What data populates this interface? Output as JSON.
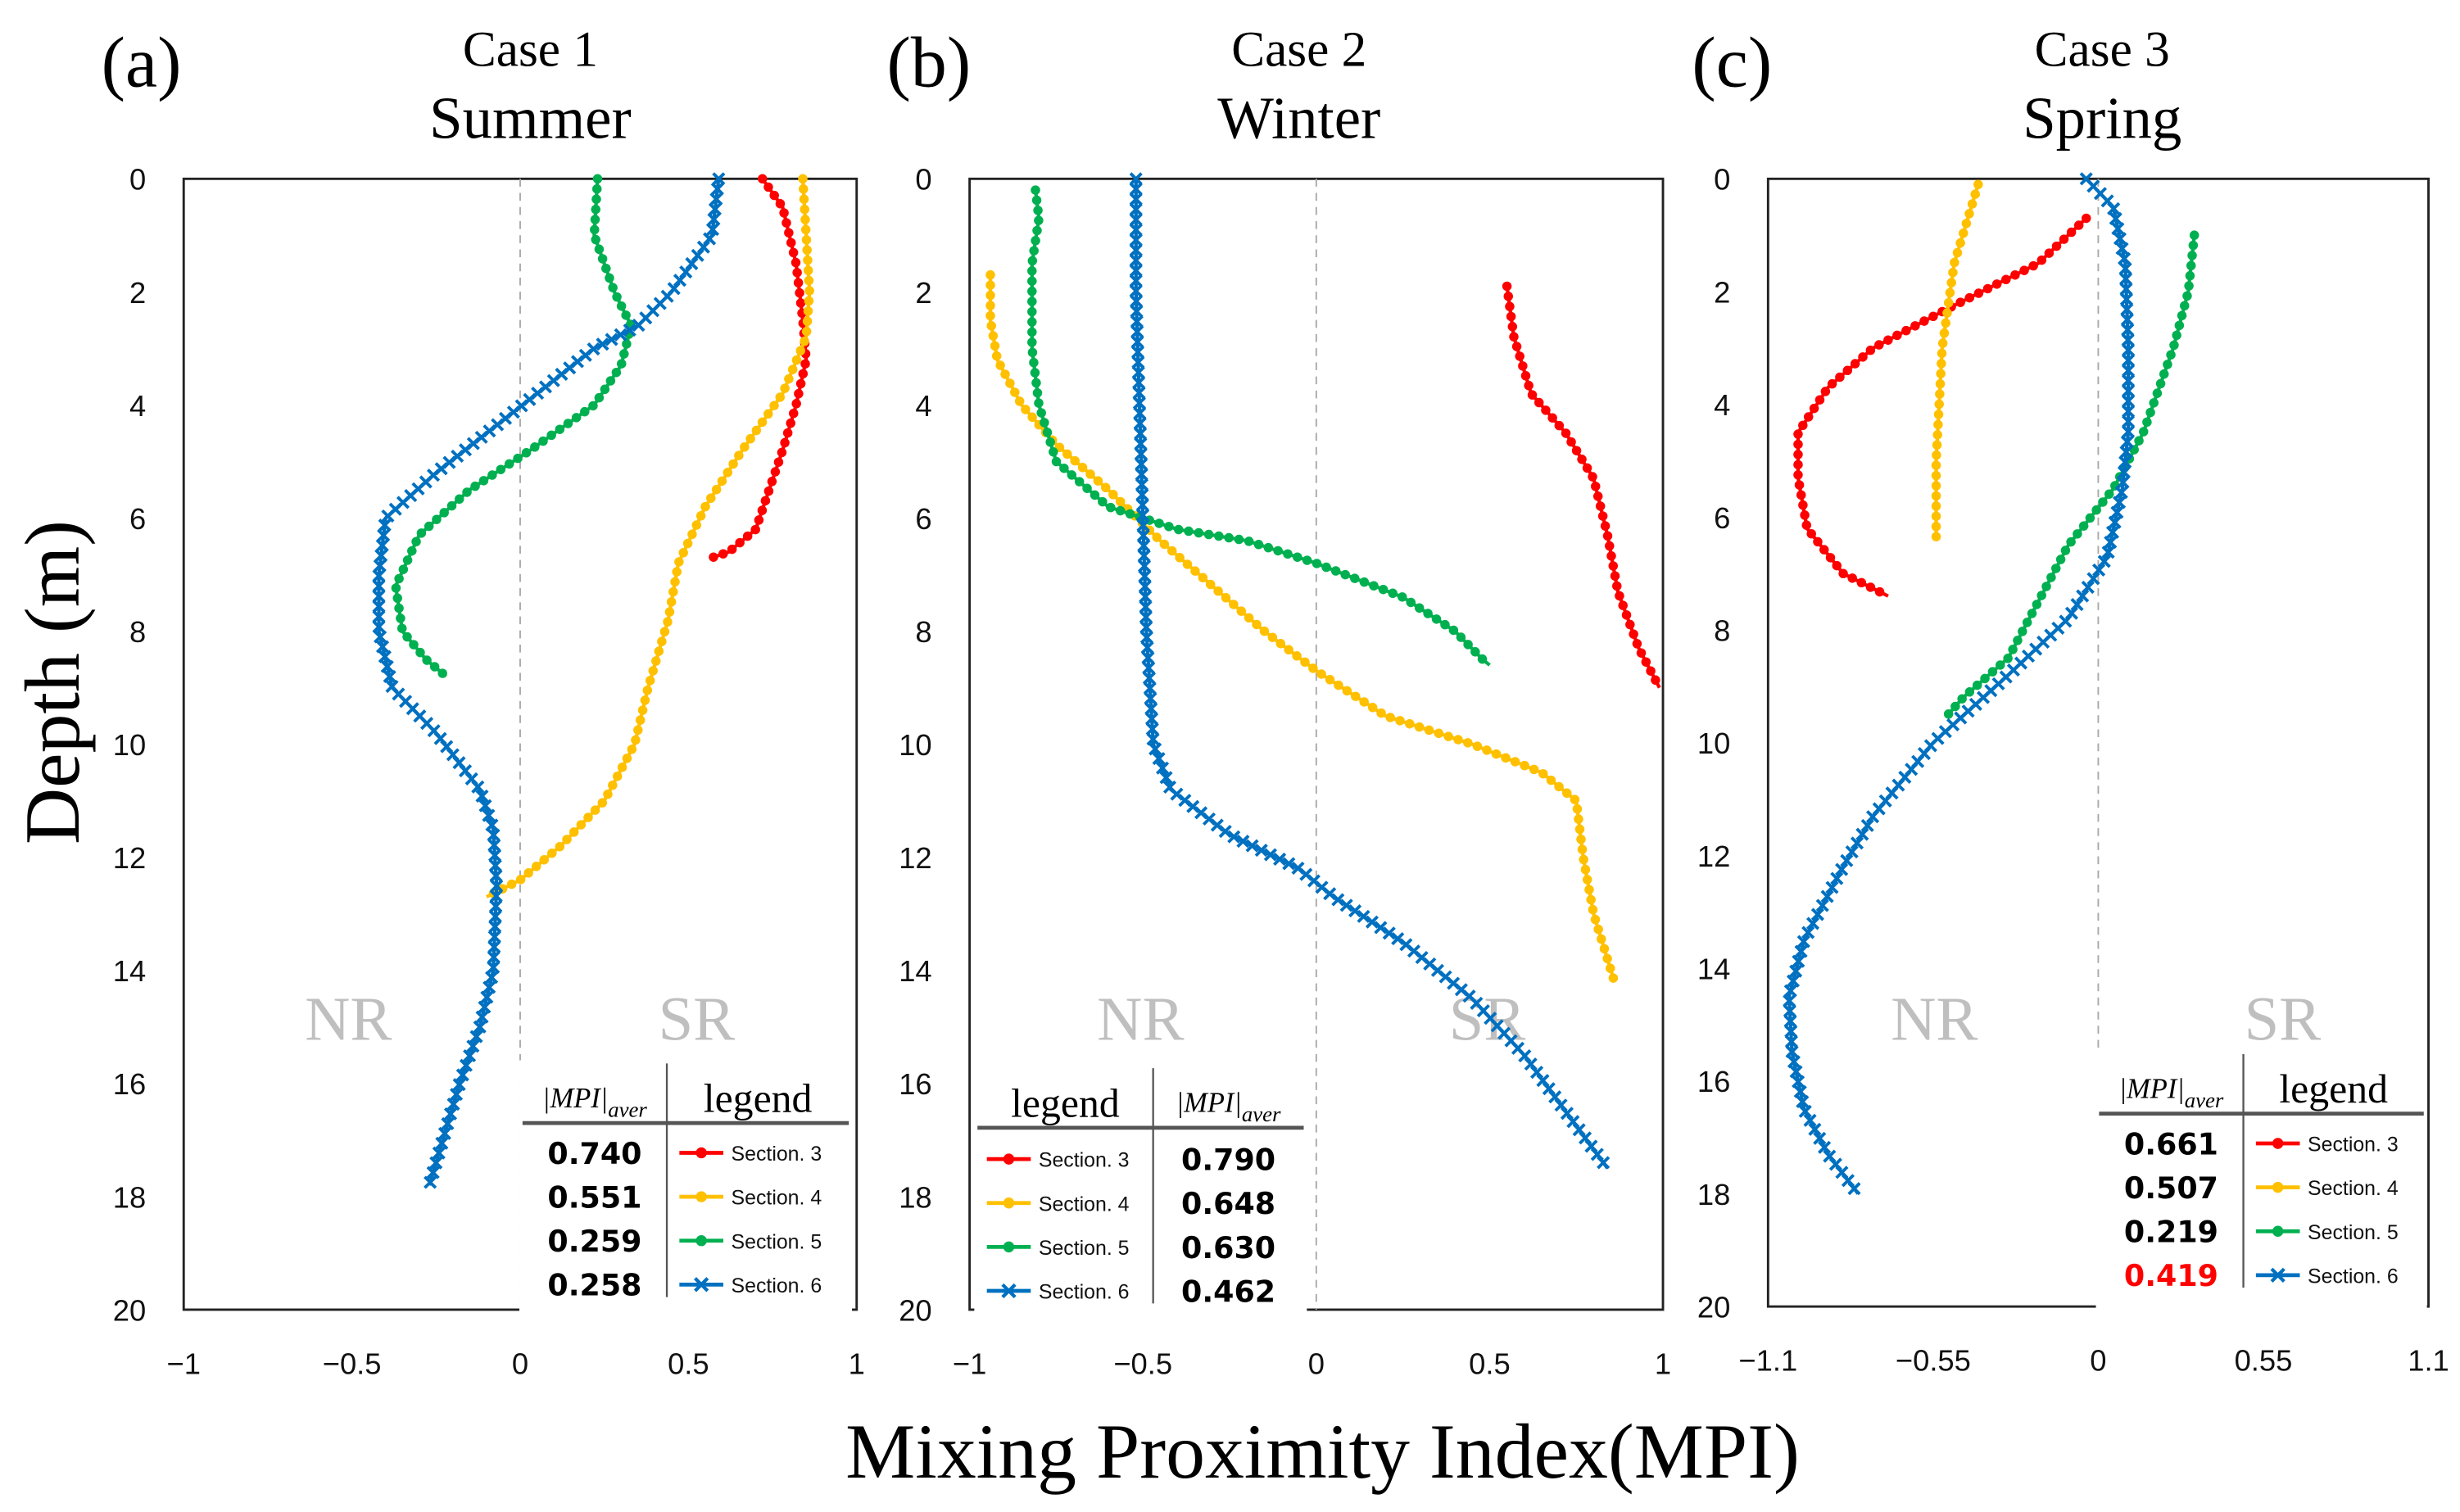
{
  "chart_data": [
    {
      "type": "line",
      "panel_label": "(a)",
      "title_line1": "Case 1",
      "title_line2": "Summer",
      "xlim": [
        -1,
        1
      ],
      "xticks": [
        "-1",
        "-0.5",
        "0",
        "0.5",
        "1"
      ],
      "xtick_values": [
        -1,
        -0.5,
        0,
        0.5,
        1
      ],
      "ylim": [
        0,
        20
      ],
      "yticks": [
        "0",
        "2",
        "4",
        "6",
        "8",
        "10",
        "12",
        "14",
        "16",
        "18",
        "20"
      ],
      "region_labels": [
        "NR",
        "SR"
      ],
      "table": {
        "mpi_header": "MPI",
        "mpi_sub": "aver",
        "legend_header": "legend",
        "order": "mpi-first"
      },
      "series": [
        {
          "name": "Section. 3",
          "color": "#ff0000",
          "marker": "dot",
          "mpi": "0.740",
          "mpi_color": "#000000",
          "points": [
            [
              0.72,
              0
            ],
            [
              0.78,
              0.5
            ],
            [
              0.82,
              1.5
            ],
            [
              0.84,
              2.5
            ],
            [
              0.85,
              3.2
            ],
            [
              0.82,
              4
            ],
            [
              0.78,
              4.8
            ],
            [
              0.74,
              5.5
            ],
            [
              0.7,
              6.2
            ],
            [
              0.62,
              6.6
            ],
            [
              0.57,
              6.7
            ]
          ]
        },
        {
          "name": "Section. 4",
          "color": "#ffc000",
          "marker": "dot",
          "mpi": "0.551",
          "mpi_color": "#000000",
          "points": [
            [
              0.84,
              0
            ],
            [
              0.85,
              1
            ],
            [
              0.86,
              2
            ],
            [
              0.85,
              2.8
            ],
            [
              0.78,
              3.8
            ],
            [
              0.66,
              4.8
            ],
            [
              0.55,
              5.8
            ],
            [
              0.47,
              6.8
            ],
            [
              0.44,
              7.8
            ],
            [
              0.38,
              9
            ],
            [
              0.34,
              10
            ],
            [
              0.25,
              11
            ],
            [
              0.12,
              11.8
            ],
            [
              0,
              12.4
            ],
            [
              -0.1,
              12.7
            ]
          ]
        },
        {
          "name": "Section. 5",
          "color": "#00b050",
          "marker": "dot",
          "mpi": "0.259",
          "mpi_color": "#000000",
          "points": [
            [
              0.23,
              0
            ],
            [
              0.22,
              1
            ],
            [
              0.28,
              2
            ],
            [
              0.33,
              2.6
            ],
            [
              0.3,
              3.3
            ],
            [
              0.22,
              4
            ],
            [
              0.03,
              4.8
            ],
            [
              -0.15,
              5.5
            ],
            [
              -0.3,
              6.3
            ],
            [
              -0.37,
              7.2
            ],
            [
              -0.35,
              8
            ],
            [
              -0.28,
              8.5
            ],
            [
              -0.22,
              8.8
            ]
          ]
        },
        {
          "name": "Section. 6",
          "color": "#0070c0",
          "marker": "x",
          "mpi": "0.258",
          "mpi_color": "#000000",
          "points": [
            [
              0.59,
              0
            ],
            [
              0.57,
              1
            ],
            [
              0.45,
              2
            ],
            [
              0.35,
              2.6
            ],
            [
              0.22,
              3
            ],
            [
              0.05,
              3.8
            ],
            [
              -0.1,
              4.5
            ],
            [
              -0.25,
              5.2
            ],
            [
              -0.4,
              6
            ],
            [
              -0.42,
              7
            ],
            [
              -0.42,
              8
            ],
            [
              -0.38,
              9
            ],
            [
              -0.25,
              9.8
            ],
            [
              -0.12,
              10.8
            ],
            [
              -0.08,
              11.5
            ],
            [
              -0.07,
              12.5
            ],
            [
              -0.08,
              14
            ],
            [
              -0.12,
              15
            ],
            [
              -0.18,
              16
            ],
            [
              -0.23,
              17
            ],
            [
              -0.27,
              17.8
            ]
          ]
        }
      ]
    },
    {
      "type": "line",
      "panel_label": "(b)",
      "title_line1": "Case 2",
      "title_line2": "Winter",
      "xlim": [
        -1,
        1
      ],
      "xticks": [
        "-1",
        "-0.5",
        "0",
        "0.5",
        "1"
      ],
      "xtick_values": [
        -1,
        -0.5,
        0,
        0.5,
        1
      ],
      "ylim": [
        0,
        20
      ],
      "yticks": [
        "0",
        "2",
        "4",
        "6",
        "8",
        "10",
        "12",
        "14",
        "16",
        "18",
        "20"
      ],
      "region_labels": [
        "NR",
        "SR"
      ],
      "table": {
        "mpi_header": "MPI",
        "mpi_sub": "aver",
        "legend_header": "legend",
        "order": "legend-first"
      },
      "series": [
        {
          "name": "Section. 3",
          "color": "#ff0000",
          "marker": "dot",
          "mpi": "0.790",
          "mpi_color": "#000000",
          "points": [
            [
              0.55,
              1.9
            ],
            [
              0.57,
              2.8
            ],
            [
              0.62,
              3.8
            ],
            [
              0.72,
              4.5
            ],
            [
              0.8,
              5.3
            ],
            [
              0.84,
              6.3
            ],
            [
              0.87,
              7.3
            ],
            [
              0.93,
              8.3
            ],
            [
              0.99,
              9
            ]
          ]
        },
        {
          "name": "Section. 4",
          "color": "#ffc000",
          "marker": "dot",
          "mpi": "0.648",
          "mpi_color": "#000000",
          "points": [
            [
              -0.94,
              1.7
            ],
            [
              -0.94,
              2.5
            ],
            [
              -0.92,
              3.2
            ],
            [
              -0.85,
              4
            ],
            [
              -0.75,
              4.7
            ],
            [
              -0.6,
              5.5
            ],
            [
              -0.45,
              6.4
            ],
            [
              -0.3,
              7.2
            ],
            [
              -0.15,
              8
            ],
            [
              0,
              8.7
            ],
            [
              0.2,
              9.5
            ],
            [
              0.45,
              10
            ],
            [
              0.65,
              10.5
            ],
            [
              0.75,
              11
            ],
            [
              0.77,
              12
            ],
            [
              0.8,
              13
            ],
            [
              0.86,
              14.2
            ]
          ]
        },
        {
          "name": "Section. 5",
          "color": "#00b050",
          "marker": "dot",
          "mpi": "0.630",
          "mpi_color": "#000000",
          "points": [
            [
              -0.81,
              0.2
            ],
            [
              -0.8,
              0.7
            ],
            [
              -0.82,
              1.5
            ],
            [
              -0.82,
              3
            ],
            [
              -0.8,
              4
            ],
            [
              -0.75,
              5
            ],
            [
              -0.6,
              5.8
            ],
            [
              -0.4,
              6.2
            ],
            [
              -0.2,
              6.4
            ],
            [
              0,
              6.8
            ],
            [
              0.25,
              7.4
            ],
            [
              0.4,
              8
            ],
            [
              0.48,
              8.5
            ],
            [
              0.5,
              8.6
            ]
          ]
        },
        {
          "name": "Section. 6",
          "color": "#0070c0",
          "marker": "x",
          "mpi": "0.462",
          "mpi_color": "#000000",
          "points": [
            [
              -0.52,
              0
            ],
            [
              -0.52,
              2
            ],
            [
              -0.51,
              4
            ],
            [
              -0.5,
              6
            ],
            [
              -0.49,
              8
            ],
            [
              -0.47,
              10
            ],
            [
              -0.42,
              10.8
            ],
            [
              -0.25,
              11.6
            ],
            [
              -0.05,
              12.2
            ],
            [
              0.05,
              12.7
            ],
            [
              0.25,
              13.5
            ],
            [
              0.45,
              14.5
            ],
            [
              0.6,
              15.5
            ],
            [
              0.72,
              16.5
            ],
            [
              0.84,
              17.5
            ]
          ]
        }
      ]
    },
    {
      "type": "line",
      "panel_label": "(c)",
      "title_line1": "Case 3",
      "title_line2": "Spring",
      "xlim": [
        -1.1,
        1.1
      ],
      "xticks": [
        "-1.1",
        "-0.55",
        "0",
        "0.55",
        "1.1"
      ],
      "xtick_values": [
        -1.1,
        -0.55,
        0,
        0.55,
        1.1
      ],
      "ylim": [
        0,
        20
      ],
      "yticks": [
        "0",
        "2",
        "4",
        "6",
        "8",
        "10",
        "12",
        "14",
        "16",
        "18",
        "20"
      ],
      "region_labels": [
        "NR",
        "SR"
      ],
      "table": {
        "mpi_header": "MPI",
        "mpi_sub": "aver",
        "legend_header": "legend",
        "order": "mpi-first"
      },
      "series": [
        {
          "name": "Section. 3",
          "color": "#ff0000",
          "marker": "dot",
          "mpi": "0.661",
          "mpi_color": "#000000",
          "points": [
            [
              -0.04,
              0.7
            ],
            [
              -0.2,
              1.5
            ],
            [
              -0.5,
              2.3
            ],
            [
              -0.75,
              3
            ],
            [
              -0.9,
              3.7
            ],
            [
              -1.0,
              4.5
            ],
            [
              -1.0,
              5.3
            ],
            [
              -0.97,
              6.2
            ],
            [
              -0.85,
              7
            ],
            [
              -0.7,
              7.4
            ]
          ]
        },
        {
          "name": "Section. 4",
          "color": "#ffc000",
          "marker": "dot",
          "mpi": "0.507",
          "mpi_color": "#000000",
          "points": [
            [
              -0.4,
              0.1
            ],
            [
              -0.48,
              1.5
            ],
            [
              -0.52,
              3
            ],
            [
              -0.54,
              5
            ],
            [
              -0.54,
              6.4
            ]
          ]
        },
        {
          "name": "Section. 5",
          "color": "#00b050",
          "marker": "dot",
          "mpi": "0.219",
          "mpi_color": "#000000",
          "points": [
            [
              0.32,
              1
            ],
            [
              0.3,
              2
            ],
            [
              0.25,
              3
            ],
            [
              0.15,
              4.5
            ],
            [
              0.05,
              5.5
            ],
            [
              -0.1,
              6.5
            ],
            [
              -0.2,
              7.5
            ],
            [
              -0.3,
              8.5
            ],
            [
              -0.45,
              9.2
            ],
            [
              -0.5,
              9.5
            ]
          ]
        },
        {
          "name": "Section. 6",
          "color": "#0070c0",
          "marker": "x",
          "mpi": "0.419",
          "mpi_color": "#ff0000",
          "points": [
            [
              -0.04,
              0
            ],
            [
              0.05,
              0.5
            ],
            [
              0.09,
              1.5
            ],
            [
              0.1,
              3
            ],
            [
              0.1,
              4.5
            ],
            [
              0.08,
              5.5
            ],
            [
              0.03,
              6.7
            ],
            [
              -0.1,
              7.8
            ],
            [
              -0.3,
              8.8
            ],
            [
              -0.55,
              10
            ],
            [
              -0.75,
              11.3
            ],
            [
              -0.85,
              12.2
            ],
            [
              -0.98,
              13.5
            ],
            [
              -1.03,
              14.5
            ],
            [
              -1.02,
              15.5
            ],
            [
              -0.98,
              16.5
            ],
            [
              -0.9,
              17.3
            ],
            [
              -0.8,
              18
            ]
          ]
        }
      ]
    }
  ],
  "shared": {
    "ylabel": "Depth (m)",
    "xlabel": "Mixing Proximity Index(MPI)"
  }
}
